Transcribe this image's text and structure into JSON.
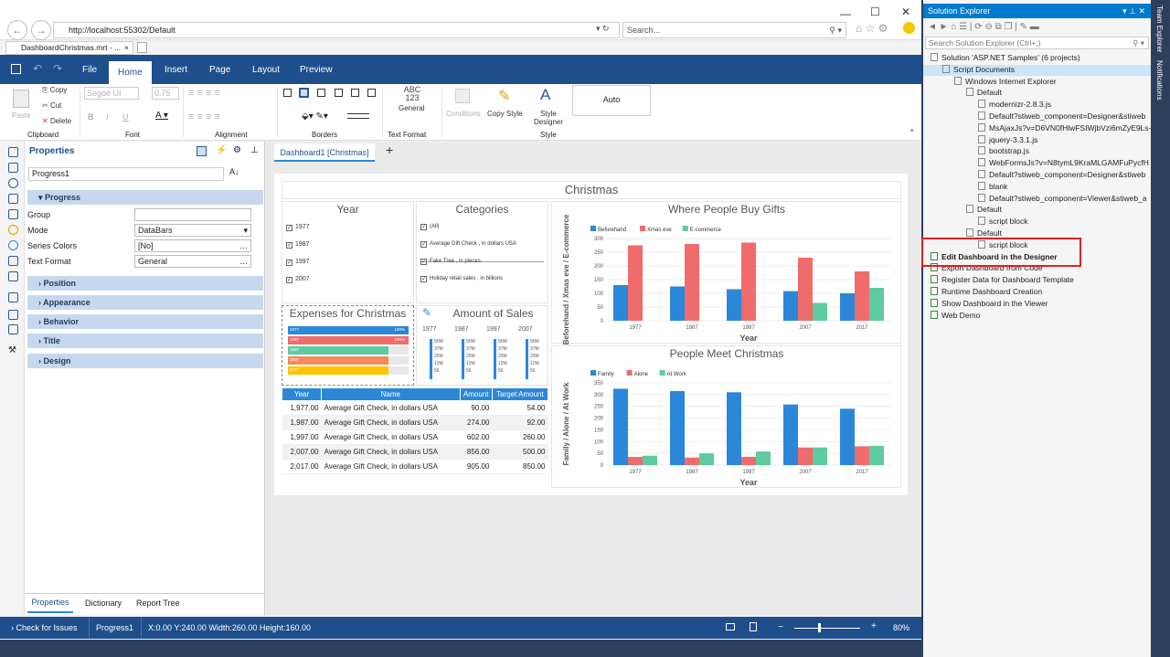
{
  "browser": {
    "url": "http://localhost:55302/Default",
    "search_placeholder": "Search...",
    "tab": "DashboardChristmas.mrt - ...",
    "tab_close": "×"
  },
  "ribbon": {
    "tabs": [
      "File",
      "Home",
      "Insert",
      "Page",
      "Layout",
      "Preview"
    ],
    "clipboard": {
      "paste": "Paste",
      "copy": "Copy",
      "cut": "Cut",
      "delete": "Delete",
      "label": "Clipboard"
    },
    "font": {
      "name": "Segoe UI",
      "size": "0.75",
      "label": "Font"
    },
    "alignment_label": "Alignment",
    "borders_label": "Borders",
    "text_format": {
      "sample": "ABC 123",
      "value": "General",
      "label": "Text Format"
    },
    "style": {
      "conditions": "Conditions",
      "copy_style": "Copy Style",
      "designer": "Style Designer",
      "auto": "Auto",
      "label": "Style"
    }
  },
  "properties": {
    "title": "Properties",
    "component": "Progress1",
    "sections": [
      "Progress",
      "Position",
      "Appearance",
      "Behavior",
      "Title",
      "Design"
    ],
    "rows": [
      {
        "label": "Group",
        "value": ""
      },
      {
        "label": "Mode",
        "value": "DataBars"
      },
      {
        "label": "Series Colors",
        "value": "[No]"
      },
      {
        "label": "Text Format",
        "value": "General"
      }
    ],
    "bottom_tabs": [
      "Properties",
      "Dictionary",
      "Report Tree"
    ]
  },
  "status": {
    "check": "Check for Issues",
    "component": "Progress1",
    "coords": "X:0.00 Y:240.00 Width:260.00 Height:160.00",
    "zoom": "80%",
    "minus": "−",
    "plus": "+"
  },
  "dashboard": {
    "tab": "Dashboard1 [Christmas]",
    "add": "+",
    "title": "Christmas",
    "year_panel": {
      "title": "Year",
      "items": [
        "1977",
        "1987",
        "1997",
        "2007"
      ]
    },
    "categories_panel": {
      "title": "Categories",
      "items": [
        "(All)",
        "Average Gift Check , in dollars USA",
        "Fake Tree , in pieces",
        "Holiday retail sales , in billions"
      ]
    },
    "expenses_panel": {
      "title": "Expenses for Christmas",
      "bars": [
        {
          "label": "1977",
          "pct": "100%",
          "color": "#2b88d8",
          "fill": 1.0
        },
        {
          "label": "1987",
          "pct": "100%",
          "color": "#f06b6b",
          "fill": 1.0
        },
        {
          "label": "1997",
          "pct": "",
          "color": "#5ecba1",
          "fill": 0.83
        },
        {
          "label": "2007",
          "pct": "",
          "color": "#f58a5b",
          "fill": 0.83
        },
        {
          "label": "2017",
          "pct": "",
          "color": "#ffc400",
          "fill": 0.83
        }
      ]
    },
    "amount_panel": {
      "title": "Amount of Sales",
      "years": [
        "1977",
        "1987",
        "1997",
        "2007"
      ],
      "ticks": [
        "50M",
        "37M",
        "25M",
        "12M",
        "56"
      ]
    },
    "table": {
      "headers": [
        "Year",
        "Name",
        "Amount",
        "Target Amount"
      ],
      "rows": [
        [
          "1,977.00",
          "Average Gift Check, in dollars USA",
          "90.00",
          "54.00"
        ],
        [
          "1,987.00",
          "Average Gift Check, in dollars USA",
          "274.00",
          "92.00"
        ],
        [
          "1,997.00",
          "Average Gift Check, in dollars USA",
          "602.00",
          "260.00"
        ],
        [
          "2,007.00",
          "Average Gift Check, in dollars USA",
          "856.00",
          "500.00"
        ],
        [
          "2,017.00",
          "Average Gift Check, in dollars USA",
          "905.00",
          "850.00"
        ]
      ]
    }
  },
  "chart_data": [
    {
      "type": "bar",
      "title": "Where People Buy Gifts",
      "categories": [
        "1977",
        "1987",
        "1997",
        "2007",
        "2017"
      ],
      "xlabel": "Year",
      "ylabel": "Beforehand / Xmas eve / E-commerce",
      "ylim": [
        0,
        300
      ],
      "yticks": [
        "300",
        "250",
        "200",
        "150",
        "100",
        "50",
        "0"
      ],
      "series": [
        {
          "name": "Beforehand",
          "color": "#2b88d8",
          "values": [
            130,
            125,
            115,
            108,
            100
          ]
        },
        {
          "name": "Xmas eve",
          "color": "#f06b6b",
          "values": [
            275,
            280,
            285,
            230,
            180
          ]
        },
        {
          "name": "E-commerce",
          "color": "#5ecba1",
          "values": [
            0,
            0,
            0,
            65,
            120
          ]
        }
      ]
    },
    {
      "type": "bar",
      "title": "People Meet Christmas",
      "categories": [
        "1977",
        "1987",
        "1997",
        "2007",
        "2017"
      ],
      "xlabel": "Year",
      "ylabel": "Family / Alone / At Work",
      "ylim": [
        0,
        350
      ],
      "yticks": [
        "350",
        "300",
        "250",
        "200",
        "150",
        "100",
        "50",
        "0"
      ],
      "series": [
        {
          "name": "Family",
          "color": "#2b88d8",
          "values": [
            325,
            315,
            310,
            258,
            240
          ]
        },
        {
          "name": "Alone",
          "color": "#f06b6b",
          "values": [
            35,
            32,
            35,
            75,
            80
          ]
        },
        {
          "name": "At Work",
          "color": "#5ecba1",
          "values": [
            40,
            50,
            58,
            75,
            82
          ]
        }
      ]
    }
  ],
  "solution": {
    "title": "Solution Explorer",
    "search": "Search Solution Explorer (Ctrl+;)",
    "items": [
      {
        "text": "Solution 'ASP.NET Samples' (6 projects)",
        "indent": 0
      },
      {
        "text": "Script Documents",
        "indent": 1
      },
      {
        "text": "Windows Internet Explorer",
        "indent": 2
      },
      {
        "text": "Default",
        "indent": 3
      },
      {
        "text": "modernizr-2.8.3.js",
        "indent": 4
      },
      {
        "text": "Default?stiweb_component=Designer&stiweb",
        "indent": 4
      },
      {
        "text": "MsAjaxJs?v=D6VN0fHlwFSIWjbVzi6mZyE9Ls-4",
        "indent": 4
      },
      {
        "text": "jquery-3.3.1.js",
        "indent": 4
      },
      {
        "text": "bootstrap.js",
        "indent": 4
      },
      {
        "text": "WebFormsJs?v=N8tymL9KraMLGAMFuPycfH",
        "indent": 4
      },
      {
        "text": "Default?stiweb_component=Designer&stiweb",
        "indent": 4
      },
      {
        "text": "blank",
        "indent": 4
      },
      {
        "text": "Default?stiweb_component=Viewer&stiweb_a",
        "indent": 4
      },
      {
        "text": "Default",
        "indent": 3
      },
      {
        "text": "script block",
        "indent": 4
      },
      {
        "text": "Default",
        "indent": 3
      },
      {
        "text": "script block",
        "indent": 4
      },
      {
        "text": "Edit Dashboard in the Designer",
        "indent": 0
      },
      {
        "text": "Export Dashboard from Code",
        "indent": 0
      },
      {
        "text": "Register Data for Dashboard Template",
        "indent": 0
      },
      {
        "text": "Runtime Dashboard Creation",
        "indent": 0
      },
      {
        "text": "Show Dashboard in the Viewer",
        "indent": 0
      },
      {
        "text": "Web Demo",
        "indent": 0
      }
    ]
  },
  "side_tabs": [
    "Team Explorer",
    "Notifications"
  ]
}
